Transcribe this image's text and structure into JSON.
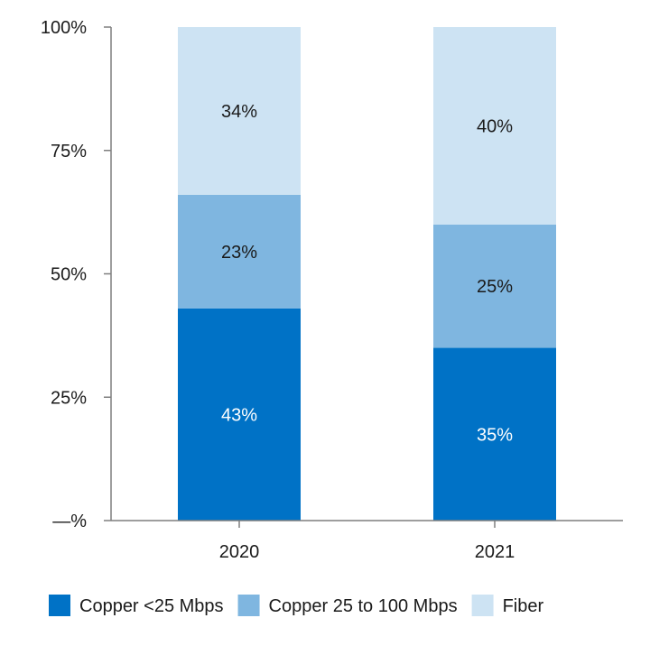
{
  "chart_data": {
    "type": "bar",
    "stacked": true,
    "categories": [
      "2020",
      "2021"
    ],
    "series": [
      {
        "name": "Copper <25 Mbps",
        "values": [
          43,
          35
        ],
        "labels": [
          "43%",
          "35%"
        ],
        "color": "#0072c6",
        "label_color": "#ffffff"
      },
      {
        "name": "Copper 25 to 100 Mbps",
        "values": [
          23,
          25
        ],
        "labels": [
          "23%",
          "25%"
        ],
        "color": "#7fb6e0",
        "label_color": "#1a1a1a"
      },
      {
        "name": "Fiber",
        "values": [
          34,
          40
        ],
        "labels": [
          "34%",
          "40%"
        ],
        "color": "#cde3f3",
        "label_color": "#1a1a1a"
      }
    ],
    "ylim": [
      0,
      100
    ],
    "y_ticks": [
      0,
      25,
      50,
      75,
      100
    ],
    "y_tick_labels": [
      "—%",
      "25%",
      "50%",
      "75%",
      "100%"
    ],
    "x_tick_labels": [
      "2020",
      "2021"
    ],
    "legend_position": "bottom",
    "grid": false,
    "title": "",
    "xlabel": "",
    "ylabel": ""
  }
}
